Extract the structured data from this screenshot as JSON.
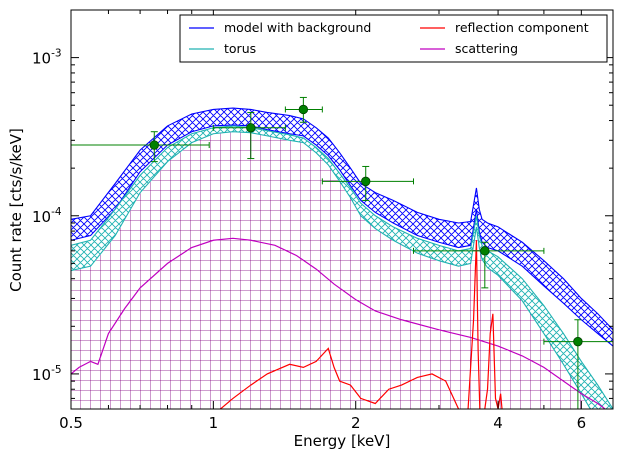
{
  "chart_data": {
    "type": "line",
    "xlabel": "Energy [keV]",
    "ylabel": "Count rate [cts/s/keV]",
    "x_scale": "log",
    "y_scale": "log",
    "xlim": [
      0.5,
      7.0
    ],
    "ylim": [
      6e-06,
      0.002
    ],
    "x_ticks": [
      {
        "value": 0.5,
        "label": "0.5"
      },
      {
        "value": 1,
        "label": "1"
      },
      {
        "value": 2,
        "label": "2"
      },
      {
        "value": 4,
        "label": "4"
      },
      {
        "value": 6,
        "label": "6"
      }
    ],
    "y_ticks": [
      {
        "value": 1e-05,
        "base": "10",
        "exp": "-5"
      },
      {
        "value": 0.0001,
        "base": "10",
        "exp": "-4"
      },
      {
        "value": 0.001,
        "base": "10",
        "exp": "-3"
      }
    ],
    "legend_position": "top-right",
    "legend": [
      {
        "label": "model with background",
        "color": "#0000ff"
      },
      {
        "label": "reflection component",
        "color": "#ff0000"
      },
      {
        "label": "torus",
        "color": "#20b2b2"
      },
      {
        "label": "scattering",
        "color": "#c000c0"
      }
    ],
    "series": [
      {
        "name": "model with background",
        "color": "#0000ff",
        "style": "hatched band",
        "x": [
          0.5,
          0.55,
          0.62,
          0.7,
          0.8,
          0.9,
          1.0,
          1.1,
          1.2,
          1.3,
          1.45,
          1.55,
          1.65,
          1.75,
          1.85,
          1.95,
          2.05,
          2.2,
          2.4,
          2.7,
          3.0,
          3.3,
          3.5,
          3.6,
          3.65,
          3.7,
          3.8,
          4.0,
          4.5,
          5.0,
          5.5,
          6.0,
          6.5,
          7.0
        ],
        "upper": [
          9.5e-05,
          0.0001,
          0.00016,
          0.00026,
          0.00037,
          0.00044,
          0.00047,
          0.00048,
          0.00047,
          0.00045,
          0.00043,
          0.00041,
          0.00036,
          0.00031,
          0.00025,
          0.0002,
          0.00016,
          0.00014,
          0.000125,
          0.000105,
          9.5e-05,
          9e-05,
          9.2e-05,
          0.00015,
          0.00011,
          9.5e-05,
          9e-05,
          8.5e-05,
          6.8e-05,
          5.2e-05,
          4e-05,
          3e-05,
          2.4e-05,
          1.9e-05
        ],
        "lower": [
          7e-05,
          7.5e-05,
          0.00011,
          0.00019,
          0.00028,
          0.00034,
          0.00037,
          0.000375,
          0.00037,
          0.00035,
          0.00033,
          0.00032,
          0.00028,
          0.00024,
          0.000195,
          0.000155,
          0.000125,
          0.000105,
          9e-05,
          7.5e-05,
          6.8e-05,
          6.3e-05,
          6.5e-05,
          0.00011,
          8e-05,
          6.8e-05,
          6.3e-05,
          6e-05,
          4.8e-05,
          3.6e-05,
          2.8e-05,
          2.2e-05,
          1.8e-05,
          1.5e-05
        ]
      },
      {
        "name": "torus",
        "color": "#20b2b2",
        "style": "hatched band",
        "x": [
          0.5,
          0.55,
          0.62,
          0.7,
          0.8,
          0.9,
          1.0,
          1.1,
          1.2,
          1.3,
          1.45,
          1.55,
          1.65,
          1.75,
          1.85,
          1.95,
          2.05,
          2.2,
          2.4,
          2.7,
          3.0,
          3.3,
          3.5,
          3.6,
          3.65,
          3.7,
          3.8,
          4.0,
          4.5,
          5.0,
          5.5,
          6.0,
          6.5,
          7.0
        ],
        "upper": [
          6.5e-05,
          7e-05,
          0.00011,
          0.00018,
          0.00027,
          0.00033,
          0.00036,
          0.00037,
          0.00036,
          0.000345,
          0.000325,
          0.00031,
          0.00027,
          0.00023,
          0.000185,
          0.00015,
          0.00012,
          0.0001,
          8.5e-05,
          7.2e-05,
          6.5e-05,
          6e-05,
          6.2e-05,
          0.0001,
          7.5e-05,
          6.5e-05,
          6e-05,
          5.5e-05,
          4e-05,
          2.7e-05,
          1.8e-05,
          1.2e-05,
          8.5e-06,
          6e-06
        ],
        "lower": [
          4.5e-05,
          4.8e-05,
          7.5e-05,
          0.00014,
          0.00022,
          0.00029,
          0.00033,
          0.00034,
          0.000335,
          0.00032,
          0.0003,
          0.00029,
          0.00025,
          0.00021,
          0.000165,
          0.00013,
          0.0001,
          8.3e-05,
          7e-05,
          5.8e-05,
          5.2e-05,
          4.8e-05,
          5e-05,
          8.5e-05,
          6.3e-05,
          5.3e-05,
          4.7e-05,
          4.2e-05,
          2.9e-05,
          1.8e-05,
          1.15e-05,
          7.5e-06,
          5e-06,
          3.5e-06
        ]
      },
      {
        "name": "scattering",
        "color": "#c000c0",
        "style": "line",
        "x": [
          0.5,
          0.52,
          0.55,
          0.57,
          0.6,
          0.65,
          0.7,
          0.8,
          0.9,
          1.0,
          1.1,
          1.2,
          1.35,
          1.5,
          1.65,
          1.8,
          2.0,
          2.2,
          2.5,
          3.0,
          3.5,
          4.0,
          4.5,
          5.0,
          5.5,
          6.0,
          6.5,
          7.0
        ],
        "y": [
          1e-05,
          1.1e-05,
          1.2e-05,
          1.15e-05,
          1.8e-05,
          2.6e-05,
          3.5e-05,
          5e-05,
          6.3e-05,
          7e-05,
          7.2e-05,
          7e-05,
          6.5e-05,
          5.6e-05,
          4.6e-05,
          3.7e-05,
          2.95e-05,
          2.5e-05,
          2.2e-05,
          1.9e-05,
          1.7e-05,
          1.5e-05,
          1.3e-05,
          1.1e-05,
          9e-06,
          7.5e-06,
          6.5e-06,
          5.5e-06
        ]
      },
      {
        "name": "reflection component",
        "color": "#ff0000",
        "style": "line",
        "x": [
          1.0,
          1.1,
          1.2,
          1.3,
          1.45,
          1.55,
          1.65,
          1.75,
          1.8,
          1.85,
          1.95,
          2.05,
          2.2,
          2.35,
          2.5,
          2.7,
          2.9,
          3.1,
          3.3,
          3.45,
          3.55,
          3.6,
          3.63,
          3.66,
          3.7,
          3.75,
          3.8,
          3.85,
          3.9,
          3.95,
          4.0,
          4.05,
          4.1,
          4.2,
          4.3
        ],
        "y": [
          5.5e-06,
          7e-06,
          8.5e-06,
          1e-05,
          1.15e-05,
          1.1e-05,
          1.2e-05,
          1.45e-05,
          1.1e-05,
          9e-06,
          8.5e-06,
          7e-06,
          6.5e-06,
          8e-06,
          8.5e-06,
          9.5e-06,
          1e-05,
          9e-06,
          6e-06,
          5.5e-06,
          2.2e-05,
          7e-05,
          1.4e-05,
          6e-06,
          5.5e-06,
          6e-06,
          8e-06,
          1.8e-05,
          2.4e-05,
          7e-06,
          6e-06,
          7.5e-06,
          5e-06,
          5e-06,
          4.5e-06
        ]
      },
      {
        "name": "data",
        "color": "#008000",
        "style": "errorbar",
        "points": [
          {
            "x": 0.75,
            "xlo": 0.5,
            "xhi": 0.98,
            "y": 0.00028,
            "ylo": 0.00022,
            "yhi": 0.00034
          },
          {
            "x": 1.2,
            "xlo": 1.0,
            "xhi": 1.42,
            "y": 0.00036,
            "ylo": 0.00023,
            "yhi": 0.00045
          },
          {
            "x": 1.55,
            "xlo": 1.42,
            "xhi": 1.7,
            "y": 0.00047,
            "ylo": 0.00039,
            "yhi": 0.00056
          },
          {
            "x": 2.1,
            "xlo": 1.7,
            "xhi": 2.65,
            "y": 0.000165,
            "ylo": 0.000125,
            "yhi": 0.000205
          },
          {
            "x": 3.75,
            "xlo": 2.65,
            "xhi": 5.0,
            "y": 6e-05,
            "ylo": 3.5e-05,
            "yhi": 6.8e-05
          },
          {
            "x": 5.9,
            "xlo": 5.0,
            "xhi": 7.0,
            "y": 1.6e-05,
            "ylo": 6e-06,
            "yhi": 2.2e-05
          }
        ]
      }
    ]
  }
}
